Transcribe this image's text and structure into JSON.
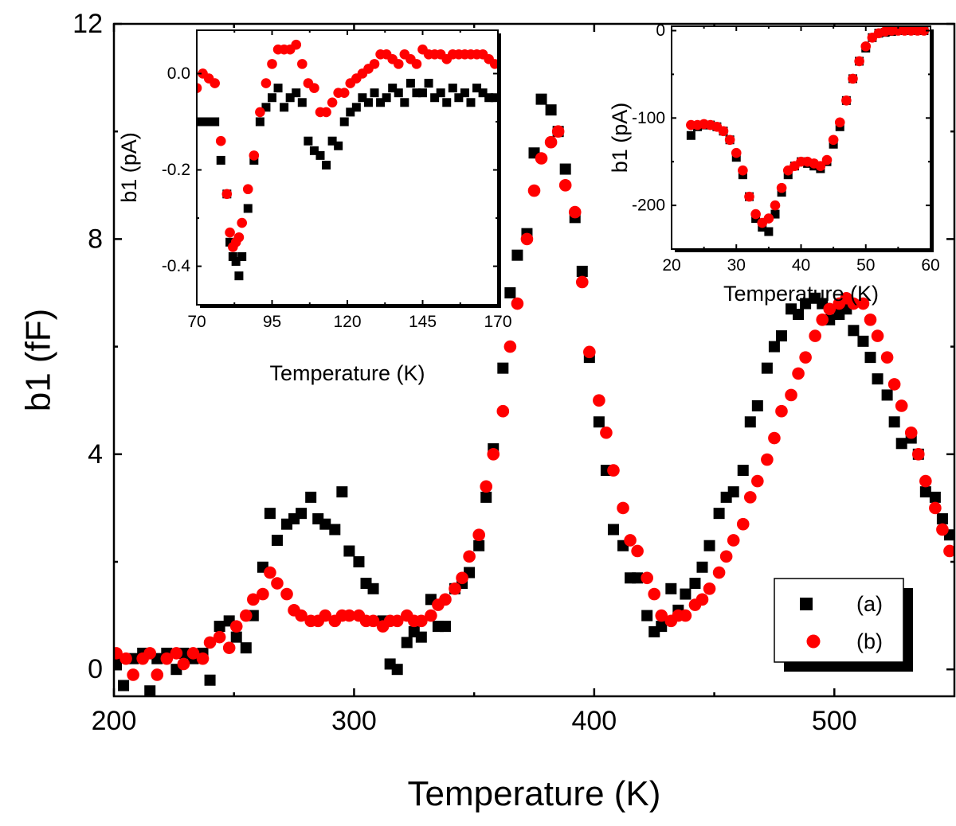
{
  "chart_data": [
    {
      "id": "main",
      "type": "scatter",
      "xlabel": "Temperature (K)",
      "ylabel": "b1 (fF)",
      "xlim": [
        200,
        550
      ],
      "ylim": [
        -0.5,
        12
      ],
      "xticks": [
        200,
        300,
        400,
        500
      ],
      "xtick_labels": [
        "200",
        "300",
        "400",
        "500"
      ],
      "yticks": [
        0,
        4,
        8,
        12
      ],
      "ytick_labels": [
        "0",
        "4",
        "8",
        "12"
      ],
      "legend": {
        "position": "bottom-right",
        "entries": [
          "(a)",
          "(b)"
        ]
      },
      "series": [
        {
          "name": "(a)",
          "marker": "square",
          "color": "#000000",
          "x": [
            201,
            204,
            208,
            212,
            215,
            218,
            222,
            226,
            229,
            233,
            237,
            240,
            244,
            248,
            251,
            255,
            258,
            262,
            265,
            268,
            272,
            275,
            278,
            282,
            285,
            288,
            292,
            295,
            298,
            302,
            305,
            308,
            312,
            315,
            318,
            322,
            325,
            328,
            332,
            335,
            338,
            342,
            345,
            348,
            352,
            355,
            358,
            362,
            365,
            368,
            372,
            375,
            378,
            382,
            385,
            388,
            392,
            395,
            398,
            402,
            405,
            408,
            412,
            415,
            418,
            422,
            425,
            428,
            432,
            435,
            438,
            442,
            445,
            448,
            452,
            455,
            458,
            462,
            465,
            468,
            472,
            475,
            478,
            482,
            485,
            488,
            492,
            495,
            498,
            502,
            505,
            508,
            512,
            515,
            518,
            522,
            525,
            528,
            532,
            535,
            538,
            542,
            545,
            548
          ],
          "y": [
            0.1,
            -0.3,
            0.2,
            0.3,
            -0.4,
            0.2,
            0.3,
            0.0,
            0.3,
            0.2,
            0.3,
            -0.2,
            0.8,
            0.9,
            0.6,
            0.4,
            1.0,
            1.9,
            2.9,
            2.4,
            2.7,
            2.8,
            2.9,
            3.2,
            2.8,
            2.7,
            2.6,
            3.3,
            2.2,
            2.0,
            1.6,
            1.5,
            0.9,
            0.1,
            0.0,
            0.5,
            0.7,
            0.6,
            1.3,
            0.8,
            0.8,
            1.5,
            1.6,
            1.8,
            2.3,
            3.2,
            4.1,
            5.6,
            7.0,
            7.7,
            8.1,
            9.6,
            10.6,
            10.4,
            10.0,
            9.3,
            8.4,
            7.4,
            5.8,
            4.6,
            3.7,
            2.6,
            2.3,
            1.7,
            1.7,
            1.0,
            0.7,
            0.8,
            1.5,
            1.1,
            1.4,
            1.6,
            1.9,
            2.3,
            2.9,
            3.2,
            3.3,
            3.7,
            4.6,
            4.9,
            5.6,
            6.0,
            6.2,
            6.7,
            6.6,
            6.8,
            6.9,
            6.8,
            6.5,
            6.6,
            6.7,
            6.3,
            6.1,
            5.8,
            5.4,
            5.1,
            4.6,
            4.2,
            4.3,
            4.0,
            3.3,
            3.2,
            2.8,
            2.5
          ]
        },
        {
          "name": "(b)",
          "marker": "circle",
          "color": "#ff0000",
          "x": [
            201,
            205,
            208,
            212,
            215,
            218,
            222,
            226,
            229,
            233,
            237,
            240,
            244,
            248,
            251,
            255,
            258,
            262,
            265,
            268,
            272,
            275,
            278,
            282,
            285,
            288,
            292,
            295,
            298,
            302,
            305,
            308,
            312,
            315,
            318,
            322,
            325,
            328,
            332,
            335,
            338,
            342,
            345,
            348,
            352,
            355,
            358,
            362,
            365,
            368,
            372,
            375,
            378,
            382,
            385,
            388,
            392,
            395,
            398,
            402,
            405,
            408,
            412,
            415,
            418,
            422,
            425,
            428,
            432,
            435,
            438,
            442,
            445,
            448,
            452,
            455,
            458,
            462,
            465,
            468,
            472,
            475,
            478,
            482,
            485,
            488,
            492,
            495,
            498,
            502,
            505,
            508,
            512,
            515,
            518,
            522,
            525,
            528,
            532,
            535,
            538,
            542,
            545,
            548
          ],
          "y": [
            0.3,
            0.2,
            -0.1,
            0.2,
            0.3,
            -0.1,
            0.2,
            0.3,
            0.1,
            0.3,
            0.2,
            0.5,
            0.6,
            0.4,
            0.8,
            1.0,
            1.3,
            1.4,
            1.8,
            1.6,
            1.4,
            1.1,
            1.0,
            0.9,
            0.9,
            1.0,
            0.9,
            1.0,
            1.0,
            1.0,
            0.9,
            0.9,
            0.8,
            0.9,
            0.9,
            1.0,
            0.9,
            0.9,
            1.0,
            1.2,
            1.3,
            1.5,
            1.7,
            2.1,
            2.5,
            3.4,
            4.0,
            4.8,
            6.0,
            6.8,
            8.0,
            8.9,
            9.5,
            9.8,
            10.0,
            9.0,
            8.5,
            7.2,
            5.9,
            5.0,
            4.4,
            3.7,
            3.0,
            2.4,
            2.2,
            1.7,
            1.4,
            1.0,
            0.9,
            1.0,
            1.0,
            1.2,
            1.3,
            1.5,
            1.8,
            2.1,
            2.4,
            2.7,
            3.2,
            3.5,
            3.9,
            4.3,
            4.8,
            5.1,
            5.5,
            5.8,
            6.2,
            6.5,
            6.7,
            6.8,
            6.9,
            6.8,
            6.8,
            6.5,
            6.2,
            5.8,
            5.3,
            4.9,
            4.4,
            4.0,
            3.5,
            3.0,
            2.6,
            2.2
          ]
        }
      ]
    },
    {
      "id": "inset-left",
      "type": "scatter",
      "xlabel": "Temperature (K)",
      "ylabel": "b1 (pA)",
      "xlim": [
        70,
        170
      ],
      "ylim": [
        -0.48,
        0.09
      ],
      "xticks": [
        70,
        95,
        120,
        145,
        170
      ],
      "xtick_labels": [
        "70",
        "95",
        "120",
        "145",
        "170"
      ],
      "yticks": [
        0.0,
        -0.2,
        -0.4
      ],
      "ytick_labels": [
        "0.0",
        "-0.2",
        "-0.4"
      ],
      "series": [
        {
          "name": "(a)",
          "marker": "square",
          "color": "#000000",
          "x": [
            70,
            72,
            74,
            76,
            78,
            80,
            81,
            82,
            83,
            84,
            85,
            87,
            89,
            91,
            93,
            95,
            97,
            99,
            101,
            103,
            105,
            107,
            109,
            111,
            113,
            115,
            117,
            119,
            121,
            123,
            125,
            127,
            129,
            131,
            133,
            135,
            137,
            139,
            141,
            143,
            145,
            147,
            149,
            151,
            153,
            155,
            157,
            159,
            161,
            163,
            165,
            167,
            169
          ],
          "y": [
            -0.1,
            -0.1,
            -0.1,
            -0.1,
            -0.18,
            -0.25,
            -0.35,
            -0.38,
            -0.39,
            -0.42,
            -0.38,
            -0.28,
            -0.18,
            -0.1,
            -0.07,
            -0.05,
            -0.03,
            -0.07,
            -0.05,
            -0.04,
            -0.06,
            -0.14,
            -0.16,
            -0.17,
            -0.19,
            -0.14,
            -0.15,
            -0.1,
            -0.08,
            -0.07,
            -0.05,
            -0.06,
            -0.04,
            -0.06,
            -0.05,
            -0.03,
            -0.04,
            -0.06,
            -0.02,
            -0.04,
            -0.04,
            -0.02,
            -0.05,
            -0.04,
            -0.06,
            -0.03,
            -0.05,
            -0.04,
            -0.06,
            -0.03,
            -0.04,
            -0.05,
            -0.05
          ]
        },
        {
          "name": "(b)",
          "marker": "circle",
          "color": "#ff0000",
          "x": [
            70,
            72,
            74,
            76,
            78,
            80,
            81,
            82,
            83,
            84,
            85,
            87,
            89,
            91,
            93,
            95,
            97,
            99,
            101,
            103,
            105,
            107,
            109,
            111,
            113,
            115,
            117,
            119,
            121,
            123,
            125,
            127,
            129,
            131,
            133,
            135,
            137,
            139,
            141,
            143,
            145,
            147,
            149,
            151,
            153,
            155,
            157,
            159,
            161,
            163,
            165,
            167,
            169
          ],
          "y": [
            -0.03,
            0.0,
            -0.01,
            -0.02,
            -0.14,
            -0.25,
            -0.33,
            -0.36,
            -0.35,
            -0.34,
            -0.31,
            -0.24,
            -0.17,
            -0.08,
            -0.02,
            0.02,
            0.05,
            0.05,
            0.05,
            0.06,
            0.02,
            -0.02,
            -0.03,
            -0.08,
            -0.08,
            -0.06,
            -0.04,
            -0.04,
            -0.02,
            -0.01,
            0.0,
            0.01,
            0.02,
            0.04,
            0.04,
            0.03,
            0.02,
            0.04,
            0.03,
            0.02,
            0.05,
            0.04,
            0.04,
            0.04,
            0.03,
            0.04,
            0.04,
            0.04,
            0.04,
            0.04,
            0.04,
            0.03,
            0.02
          ]
        }
      ]
    },
    {
      "id": "inset-right",
      "type": "scatter",
      "xlabel": "Temperature (K)",
      "ylabel": "b1 (pA)",
      "xlim": [
        20,
        60
      ],
      "ylim": [
        -250,
        5
      ],
      "xticks": [
        20,
        30,
        40,
        50,
        60
      ],
      "xtick_labels": [
        "20",
        "30",
        "40",
        "50",
        "60"
      ],
      "yticks": [
        0,
        -100,
        -200
      ],
      "ytick_labels": [
        "0",
        "-100",
        "-200"
      ],
      "series": [
        {
          "name": "(a)",
          "marker": "square",
          "color": "#000000",
          "x": [
            23,
            24,
            25,
            26,
            27,
            28,
            29,
            30,
            31,
            32,
            33,
            34,
            35,
            36,
            37,
            38,
            39,
            40,
            41,
            42,
            43,
            44,
            45,
            46,
            47,
            48,
            49,
            50,
            51,
            52,
            53,
            54,
            55,
            56,
            57,
            58,
            59
          ],
          "y": [
            -120,
            -110,
            -108,
            -108,
            -110,
            -115,
            -125,
            -145,
            -165,
            -190,
            -215,
            -225,
            -230,
            -210,
            -185,
            -165,
            -155,
            -150,
            -152,
            -155,
            -158,
            -150,
            -130,
            -110,
            -80,
            -55,
            -35,
            -20,
            -8,
            -3,
            -2,
            -1,
            0,
            0,
            0,
            0,
            0
          ]
        },
        {
          "name": "(b)",
          "marker": "circle",
          "color": "#ff0000",
          "x": [
            23,
            24,
            25,
            26,
            27,
            28,
            29,
            30,
            31,
            32,
            33,
            34,
            35,
            36,
            37,
            38,
            39,
            40,
            41,
            42,
            43,
            44,
            45,
            46,
            47,
            48,
            49,
            50,
            51,
            52,
            53,
            54,
            55,
            56,
            57,
            58,
            59
          ],
          "y": [
            -108,
            -108,
            -107,
            -108,
            -110,
            -115,
            -125,
            -140,
            -160,
            -190,
            -210,
            -220,
            -215,
            -200,
            -180,
            -160,
            -155,
            -150,
            -150,
            -152,
            -155,
            -148,
            -125,
            -105,
            -80,
            -55,
            -35,
            -18,
            -8,
            -3,
            -1,
            0,
            0,
            0,
            0,
            0,
            0
          ]
        }
      ]
    }
  ]
}
